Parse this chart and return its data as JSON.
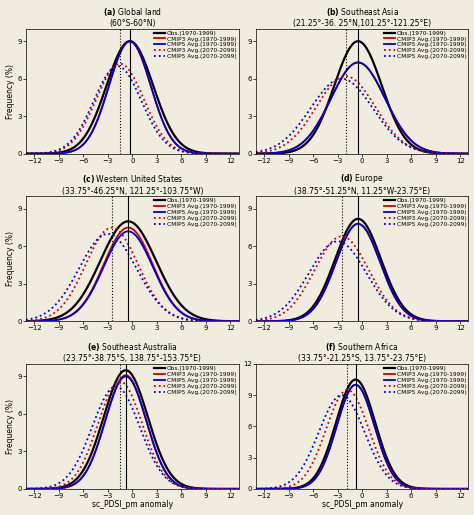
{
  "panels": [
    {
      "label": "(a)",
      "title": "Global land",
      "subtitle": "(60°S-60°N)",
      "curves": [
        {
          "mean": -0.3,
          "std": 2.85,
          "peak": 9.0,
          "color": "#000000",
          "lw": 1.6,
          "ls": "-",
          "label": "Obs.(1970-1999)"
        },
        {
          "mean": -0.3,
          "std": 2.55,
          "peak": 9.0,
          "color": "#cc0000",
          "lw": 1.3,
          "ls": "-",
          "label": "CMIP3 Avg.(1970-1999)"
        },
        {
          "mean": -0.3,
          "std": 2.55,
          "peak": 9.0,
          "color": "#0000cc",
          "lw": 1.3,
          "ls": "-",
          "label": "CMIP5 Avg.(1970-1999)"
        },
        {
          "mean": -1.5,
          "std": 2.9,
          "peak": 7.2,
          "color": "#cc0000",
          "lw": 1.3,
          "ls": ":",
          "label": "CMIP3 Avg.(2070-2099)"
        },
        {
          "mean": -1.8,
          "std": 2.9,
          "peak": 7.0,
          "color": "#0000cc",
          "lw": 1.3,
          "ls": ":",
          "label": "CMIP5 Avg.(2070-2099)"
        }
      ],
      "vline_solid": -0.3,
      "vline_dot": -1.5,
      "ylim": [
        0,
        10
      ],
      "yticks": [
        0,
        3,
        6,
        9
      ]
    },
    {
      "label": "(b)",
      "title": "Southeast Asia",
      "subtitle": "(21.25°-36. 25°N,101.25°-121.25°E)",
      "curves": [
        {
          "mean": -0.5,
          "std": 2.9,
          "peak": 9.0,
          "color": "#000000",
          "lw": 1.6,
          "ls": "-",
          "label": "Obs.(1970-1999)"
        },
        {
          "mean": -0.5,
          "std": 3.3,
          "peak": 7.3,
          "color": "#cc0000",
          "lw": 1.3,
          "ls": "-",
          "label": "CMIP3 Avg.(1970-1999)"
        },
        {
          "mean": -0.5,
          "std": 3.3,
          "peak": 7.3,
          "color": "#0000cc",
          "lw": 1.3,
          "ls": "-",
          "label": "CMIP5 Avg.(1970-1999)"
        },
        {
          "mean": -2.0,
          "std": 3.6,
          "peak": 6.2,
          "color": "#cc0000",
          "lw": 1.3,
          "ls": ":",
          "label": "CMIP3 Avg.(2070-2099)"
        },
        {
          "mean": -2.5,
          "std": 3.8,
          "peak": 6.0,
          "color": "#0000cc",
          "lw": 1.3,
          "ls": ":",
          "label": "CMIP5 Avg.(2070-2099)"
        }
      ],
      "vline_solid": -0.5,
      "vline_dot": -2.0,
      "ylim": [
        0,
        10
      ],
      "yticks": [
        0,
        3,
        6,
        9
      ]
    },
    {
      "label": "(c)",
      "title": "Western United States",
      "subtitle": "(33.75°-46.25°N, 121.25°-103.75°W)",
      "curves": [
        {
          "mean": -0.5,
          "std": 3.4,
          "peak": 8.0,
          "color": "#000000",
          "lw": 1.6,
          "ls": "-",
          "label": "Obs.(1970-1999)"
        },
        {
          "mean": -0.5,
          "std": 3.0,
          "peak": 7.5,
          "color": "#cc0000",
          "lw": 1.3,
          "ls": "-",
          "label": "CMIP3 Avg.(1970-1999)"
        },
        {
          "mean": -0.5,
          "std": 3.0,
          "peak": 7.2,
          "color": "#0000cc",
          "lw": 1.3,
          "ls": "-",
          "label": "CMIP5 Avg.(1970-1999)"
        },
        {
          "mean": -2.5,
          "std": 3.2,
          "peak": 7.5,
          "color": "#cc0000",
          "lw": 1.3,
          "ls": ":",
          "label": "CMIP3 Avg.(2070-2099)"
        },
        {
          "mean": -3.0,
          "std": 3.5,
          "peak": 7.0,
          "color": "#0000cc",
          "lw": 1.3,
          "ls": ":",
          "label": "CMIP5 Avg.(2070-2099)"
        }
      ],
      "vline_solid": -0.5,
      "vline_dot": -2.5,
      "ylim": [
        0,
        10
      ],
      "yticks": [
        0,
        3,
        6,
        9
      ]
    },
    {
      "label": "(d)",
      "title": "Europe",
      "subtitle": "(38.75°-51.25°N, 11.25°W-23.75°E)",
      "curves": [
        {
          "mean": -0.5,
          "std": 2.8,
          "peak": 8.2,
          "color": "#000000",
          "lw": 1.6,
          "ls": "-",
          "label": "Obs.(1970-1999)"
        },
        {
          "mean": -0.5,
          "std": 2.7,
          "peak": 7.8,
          "color": "#cc0000",
          "lw": 1.3,
          "ls": "-",
          "label": "CMIP3 Avg.(1970-1999)"
        },
        {
          "mean": -0.5,
          "std": 2.7,
          "peak": 7.8,
          "color": "#0000cc",
          "lw": 1.3,
          "ls": "-",
          "label": "CMIP5 Avg.(1970-1999)"
        },
        {
          "mean": -2.5,
          "std": 3.3,
          "peak": 6.8,
          "color": "#cc0000",
          "lw": 1.3,
          "ls": ":",
          "label": "CMIP3 Avg.(2070-2099)"
        },
        {
          "mean": -3.0,
          "std": 3.5,
          "peak": 6.4,
          "color": "#0000cc",
          "lw": 1.3,
          "ls": ":",
          "label": "CMIP5 Avg.(2070-2099)"
        }
      ],
      "vline_solid": -0.5,
      "vline_dot": -2.5,
      "ylim": [
        0,
        10
      ],
      "yticks": [
        0,
        3,
        6,
        9
      ]
    },
    {
      "label": "(e)",
      "title": "Southeast Australia",
      "subtitle": "(23.75°-38.75°S, 138.75°-153.75°E)",
      "curves": [
        {
          "mean": -0.8,
          "std": 2.7,
          "peak": 9.5,
          "color": "#000000",
          "lw": 1.6,
          "ls": "-",
          "label": "Obs.(1970-1999)"
        },
        {
          "mean": -0.8,
          "std": 2.5,
          "peak": 9.1,
          "color": "#cc0000",
          "lw": 1.3,
          "ls": "-",
          "label": "CMIP3 Avg.(1970-1999)"
        },
        {
          "mean": -0.8,
          "std": 2.5,
          "peak": 9.0,
          "color": "#0000cc",
          "lw": 1.3,
          "ls": "-",
          "label": "CMIP5 Avg.(1970-1999)"
        },
        {
          "mean": -1.5,
          "std": 2.7,
          "peak": 8.6,
          "color": "#cc0000",
          "lw": 1.3,
          "ls": ":",
          "label": "CMIP3 Avg.(2070-2099)"
        },
        {
          "mean": -2.0,
          "std": 2.9,
          "peak": 8.2,
          "color": "#0000cc",
          "lw": 1.3,
          "ls": ":",
          "label": "CMIP5 Avg.(2070-2099)"
        }
      ],
      "vline_solid": -0.8,
      "vline_dot": -1.5,
      "ylim": [
        0,
        10
      ],
      "yticks": [
        0,
        3,
        6,
        9
      ]
    },
    {
      "label": "(f)",
      "title": "Southern Africa",
      "subtitle": "(33.75°-21.25°S, 13.75°-23.75°E)",
      "curves": [
        {
          "mean": -0.8,
          "std": 2.4,
          "peak": 10.5,
          "color": "#000000",
          "lw": 1.6,
          "ls": "-",
          "label": "Obs.(1970-1999)"
        },
        {
          "mean": -0.8,
          "std": 2.3,
          "peak": 10.0,
          "color": "#cc0000",
          "lw": 1.3,
          "ls": "-",
          "label": "CMIP3 Avg.(1970-1999)"
        },
        {
          "mean": -0.8,
          "std": 2.3,
          "peak": 10.0,
          "color": "#0000cc",
          "lw": 1.3,
          "ls": "-",
          "label": "CMIP5 Avg.(1970-1999)"
        },
        {
          "mean": -1.8,
          "std": 2.6,
          "peak": 9.5,
          "color": "#cc0000",
          "lw": 1.3,
          "ls": ":",
          "label": "CMIP3 Avg.(2070-2099)"
        },
        {
          "mean": -2.5,
          "std": 2.8,
          "peak": 9.0,
          "color": "#0000cc",
          "lw": 1.3,
          "ls": ":",
          "label": "CMIP5 Avg.(2070-2099)"
        }
      ],
      "vline_solid": -0.8,
      "vline_dot": -1.8,
      "ylim": [
        0,
        12
      ],
      "yticks": [
        0,
        3,
        6,
        9,
        12
      ]
    }
  ],
  "xlim": [
    -13,
    13
  ],
  "xticks": [
    -12,
    -9,
    -6,
    -3,
    0,
    3,
    6,
    9,
    12
  ],
  "xlabel": "sc_PDSI_pm anomaly",
  "ylabel": "Frequency (%)",
  "bg_color": "#f0ece0"
}
